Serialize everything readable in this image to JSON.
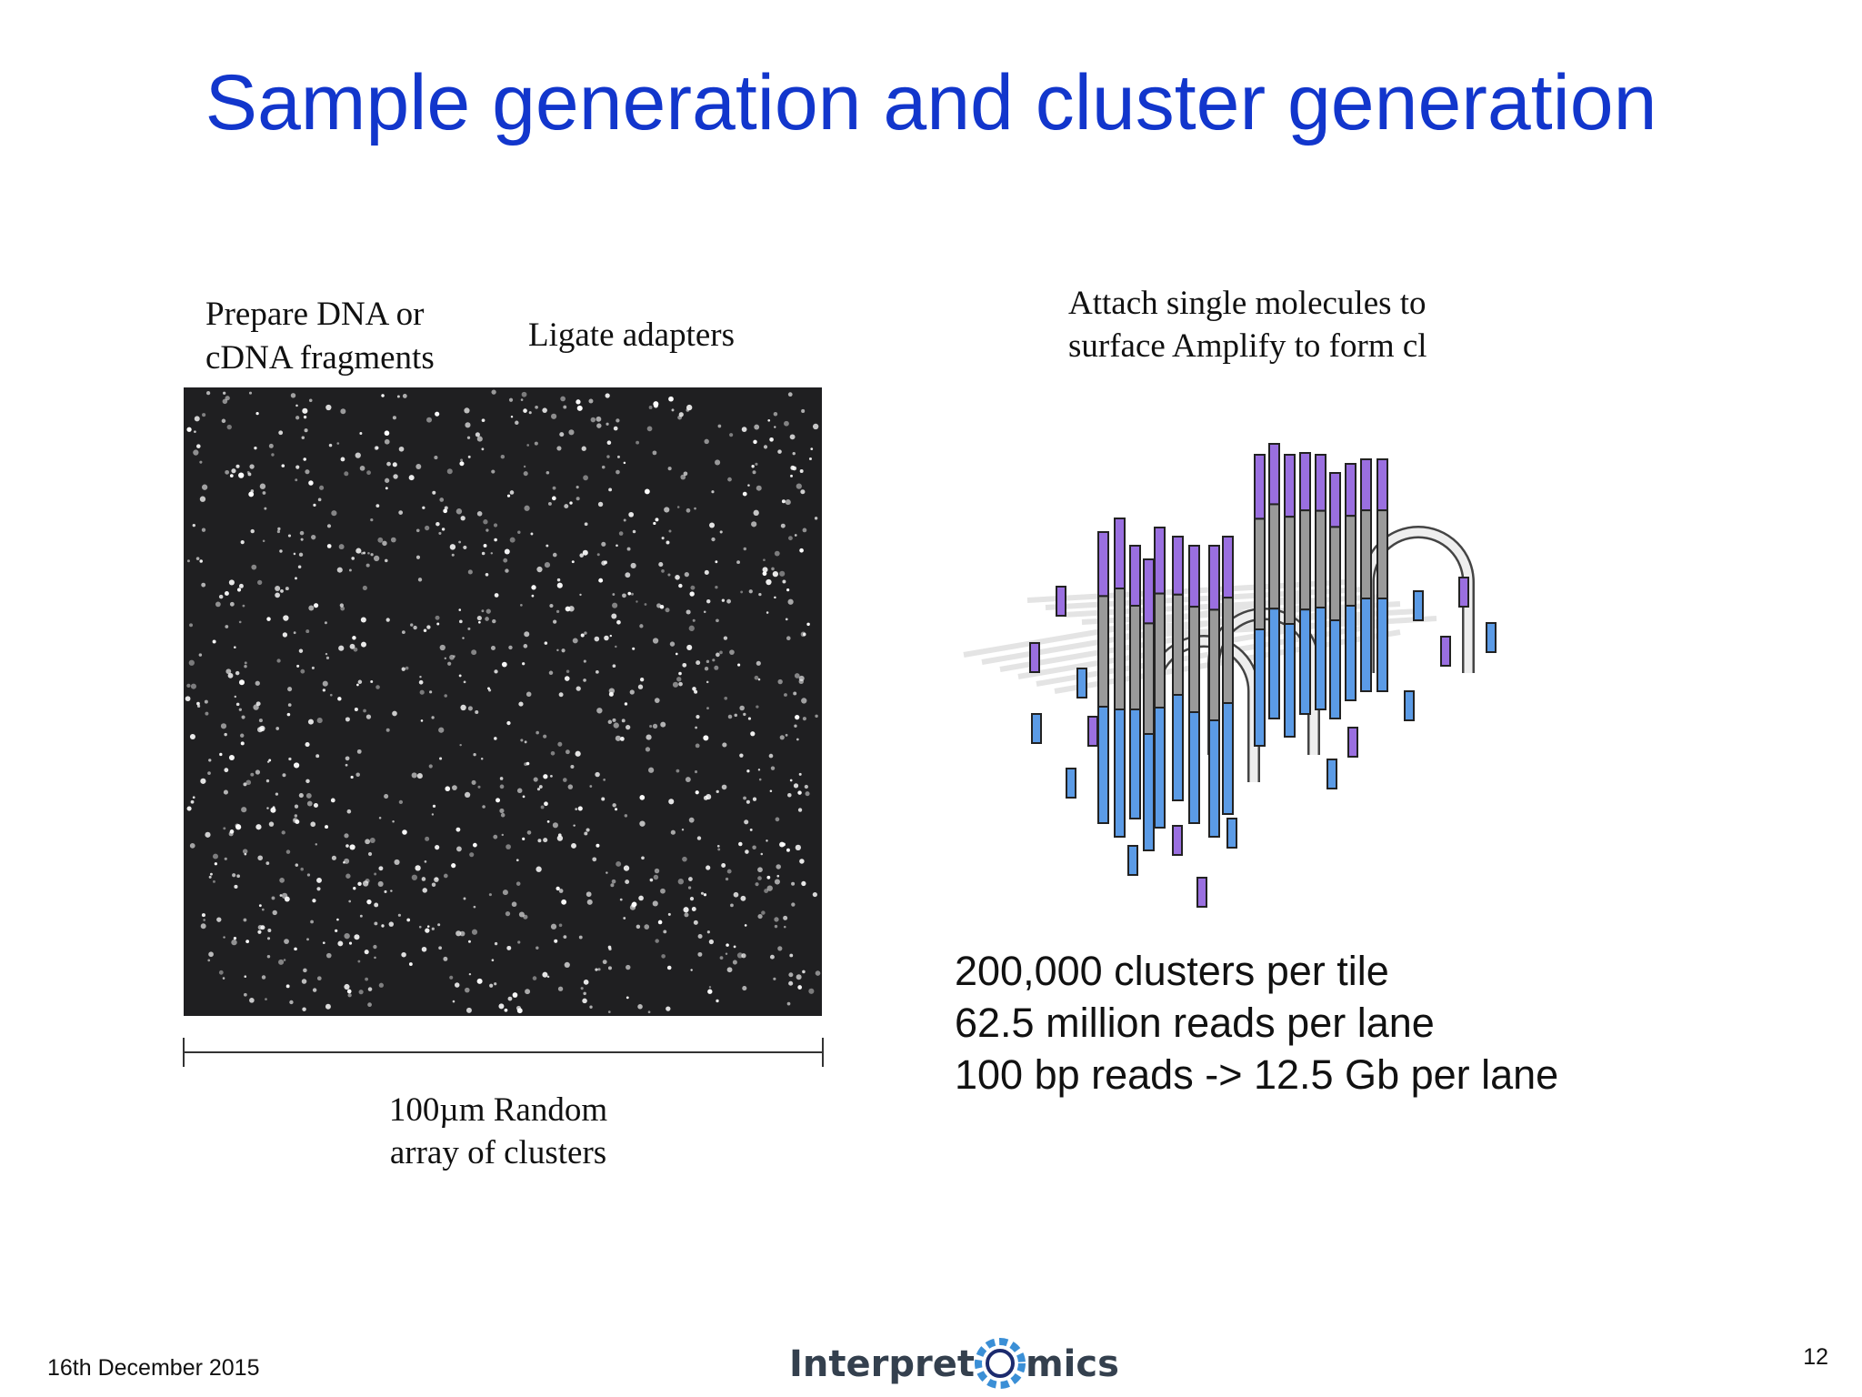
{
  "title": "Sample generation and cluster generation",
  "steps": {
    "prepare": [
      "Prepare DNA or",
      "cDNA fragments"
    ],
    "ligate": "Ligate adapters",
    "attach": [
      "Attach single molecules to",
      "surface Amplify to form cl"
    ]
  },
  "image_caption": [
    "100µm Random",
    "array of clusters"
  ],
  "stats": [
    "200,000 clusters per tile",
    "62.5 million reads per lane",
    "100 bp reads -> 12.5 Gb per lane"
  ],
  "footer": {
    "date": "16th December 2015",
    "logo": {
      "left": "Interpret",
      "right": "mics"
    },
    "page": "12"
  }
}
